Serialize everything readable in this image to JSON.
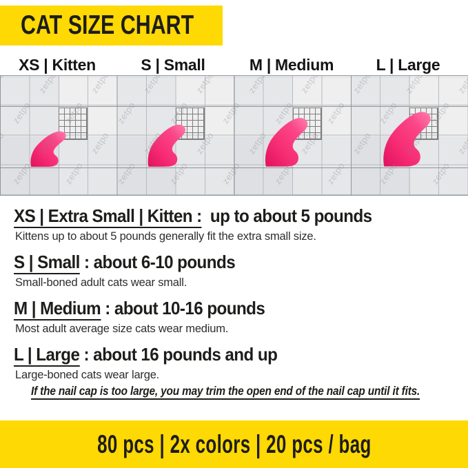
{
  "header": {
    "title": "CAT SIZE CHART"
  },
  "size_labels": [
    "XS | Kitten",
    "S | Small",
    "M | Medium",
    "L | Large"
  ],
  "figure": {
    "watermark_text": "zetpo",
    "cap_sizes": [
      "XS",
      "S",
      "M",
      "L"
    ]
  },
  "sections": [
    {
      "title_underlined": "XS | Extra Small | Kitten :",
      "title_rest": "  up to about 5 pounds",
      "description": "Kittens up to about 5 pounds generally fit the extra small size."
    },
    {
      "title_underlined": "S | Small",
      "title_rest": " : about 6-10 pounds",
      "description": "Small-boned adult cats wear small."
    },
    {
      "title_underlined": "M | Medium",
      "title_rest": " : about 10-16 pounds",
      "description": "Most adult average size cats wear medium."
    },
    {
      "title_underlined": "L | Large",
      "title_rest": " : about 16 pounds and up",
      "description": "Large-boned cats wear large."
    }
  ],
  "note": "If the nail cap is too large, you may trim the open end of the nail cap until it fits.",
  "footer": {
    "text": "80 pcs | 2x colors | 20 pcs / bag"
  },
  "colors": {
    "banner_yellow": "#FFD903",
    "cap_pink": "#F82E74",
    "cap_pink_dark": "#E01260",
    "cap_pink_light": "#FF7FAE",
    "text_black": "#1D1D1B"
  }
}
